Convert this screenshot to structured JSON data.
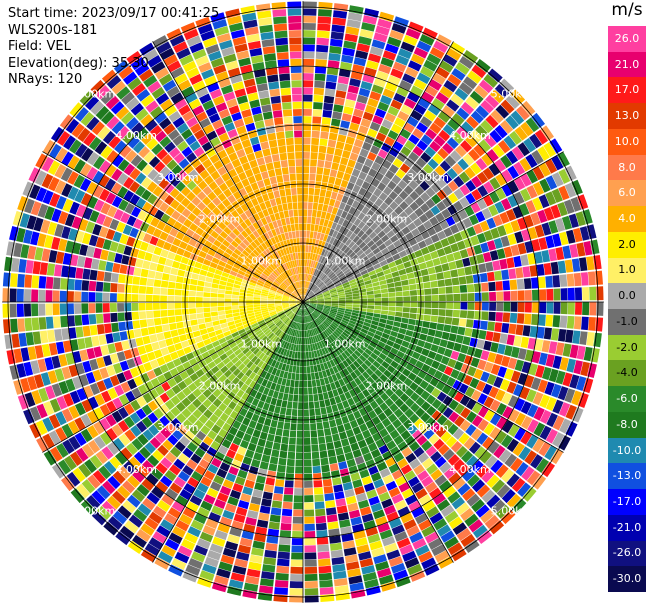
{
  "header": {
    "start_time": "Start time: 2023/09/17 00:41:25",
    "instrument": "WLS200s-181",
    "field": "Field: VEL",
    "elevation": "Elevation(deg): 35.30",
    "nrays": "NRays: 120"
  },
  "colorbar": {
    "unit": "m/s",
    "ticks": [
      "26.0",
      "21.0",
      "17.0",
      "13.0",
      "10.0",
      "8.0",
      "6.0",
      "4.0",
      "2.0",
      "1.0",
      "0.0",
      "-1.0",
      "-2.0",
      "-4.0",
      "-6.0",
      "-8.0",
      "-10.0",
      "-13.0",
      "-17.0",
      "-21.0",
      "-26.0",
      "-30.0"
    ],
    "colors": [
      "#ff3fa0",
      "#e8006e",
      "#ff1a1a",
      "#e23a00",
      "#ff5a10",
      "#ff7a4a",
      "#ffa050",
      "#ffb000",
      "#ffee00",
      "#fff066",
      "#aaaaaa",
      "#707070",
      "#9acd32",
      "#6aa121",
      "#2a8a2a",
      "#1f7a1f",
      "#1f8ab0",
      "#1050e0",
      "#0000ff",
      "#0000b0",
      "#101080",
      "#0a0a50"
    ]
  },
  "chart_data": {
    "type": "ppi",
    "title": "",
    "range_rings_km": [
      1,
      2,
      3,
      4,
      5
    ],
    "range_labels": [
      "1.00km",
      "2.00km",
      "3.00km",
      "4.00km",
      "5.00km"
    ],
    "nrays": 120,
    "value_range": [
      -30,
      30
    ],
    "sectors": [
      {
        "from_deg": 20,
        "to_deg": 100,
        "value": -1.0,
        "note": "gray/green boundary"
      },
      {
        "from_deg": 100,
        "to_deg": 210,
        "value": -6.0
      },
      {
        "from_deg": 210,
        "to_deg": 245,
        "value": -2.0
      },
      {
        "from_deg": 245,
        "to_deg": 290,
        "value": 2.0
      },
      {
        "from_deg": 290,
        "to_deg": 380,
        "value": 4.0
      }
    ]
  }
}
